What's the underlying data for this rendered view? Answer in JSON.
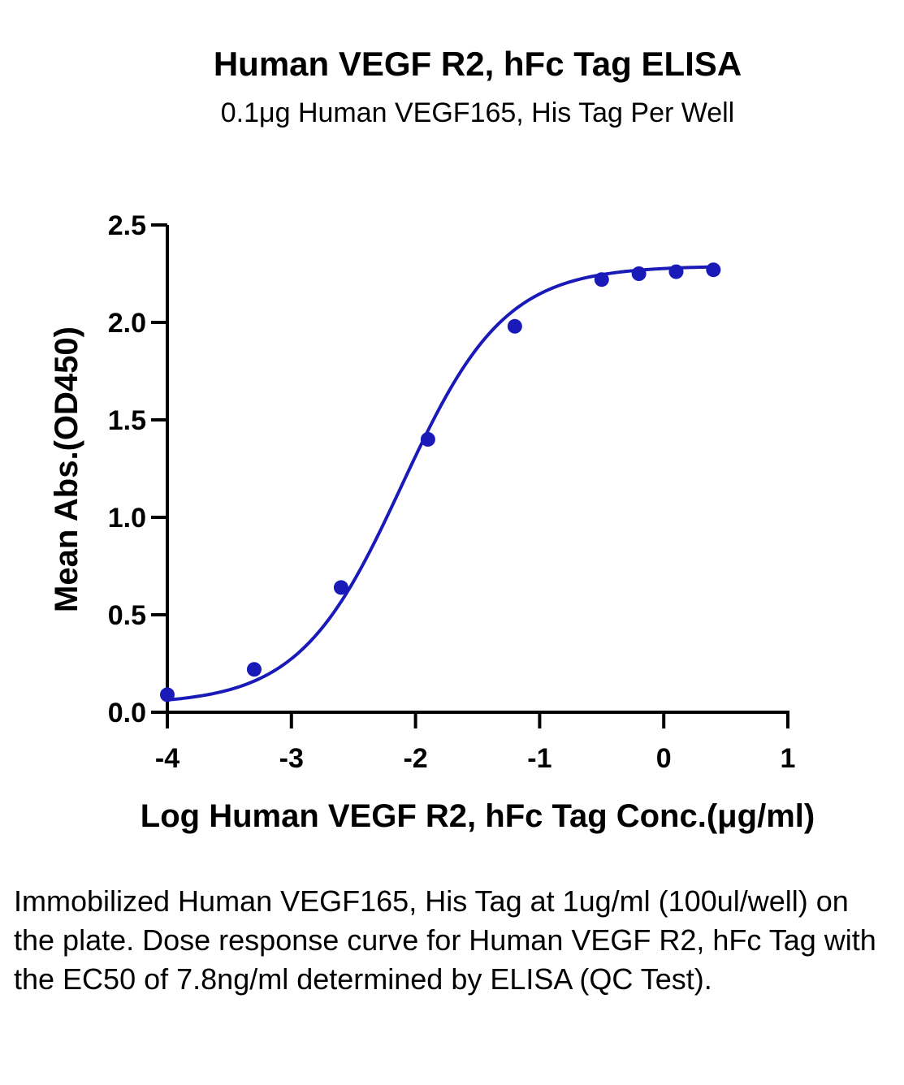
{
  "chart_data": {
    "type": "scatter",
    "title": "Human VEGF R2, hFc Tag ELISA",
    "subtitle": "0.1μg Human VEGF165, His Tag Per Well",
    "xlabel": "Log Human VEGF R2, hFc Tag Conc.(μg/ml)",
    "ylabel": "Mean Abs.(OD450)",
    "xlim": [
      -4,
      1
    ],
    "ylim": [
      0,
      2.5
    ],
    "x_ticks": [
      "-4",
      "-3",
      "-2",
      "-1",
      "0",
      "1"
    ],
    "y_ticks": [
      "0.0",
      "0.5",
      "1.0",
      "1.5",
      "2.0",
      "2.5"
    ],
    "grid": false,
    "series_color": "#1a1ab8",
    "fit": "4PL curve",
    "series": [
      {
        "x": [
          -4.0,
          -3.3,
          -2.6,
          -1.9,
          -1.2,
          -0.5,
          -0.2,
          0.1,
          0.4
        ],
        "y": [
          0.09,
          0.22,
          0.64,
          1.4,
          1.98,
          2.22,
          2.25,
          2.26,
          2.27
        ]
      }
    ],
    "curve_params": {
      "bottom": 0.04,
      "top": 2.29,
      "log_ec50": -2.11,
      "hill": 1.05
    }
  },
  "caption": "Immobilized Human VEGF165, His Tag at 1ug/ml (100ul/well) on the plate. Dose response curve for Human VEGF R2, hFc Tag with the EC50 of 7.8ng/ml determined by ELISA (QC Test)."
}
